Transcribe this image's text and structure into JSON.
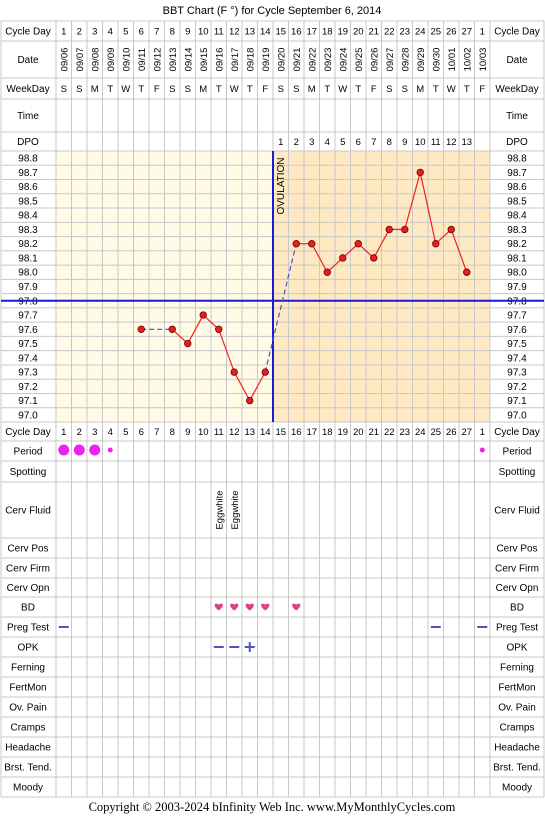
{
  "title": "BBT Chart (F °) for Cycle September 6, 2014",
  "footer": "Copyright © 2003-2024 bInfinity Web Inc.    www.MyMonthlyCycles.com",
  "colors": {
    "follicular_bg": "#fffbe6",
    "luteal_bg": "#fee9c3",
    "grid": "#c8c8c8",
    "temp_line": "#ee2222",
    "marker_fill": "#e02020",
    "coverline": "#1a1ad4",
    "ovulation_line": "#1a1ad4",
    "period_dot": "#ee22ee",
    "bd_heart": "#e0408a",
    "test_dash": "#5050c8"
  },
  "labels": {
    "cycle_day": "Cycle Day",
    "date": "Date",
    "weekday": "WeekDay",
    "time": "Time",
    "dpo": "DPO",
    "ovulation": "OVULATION",
    "rows": [
      "Period",
      "Spotting",
      "Cerv Fluid",
      "Cerv Pos",
      "Cerv Firm",
      "Cerv Opn",
      "BD",
      "Preg Test",
      "OPK",
      "Ferning",
      "FertMon",
      "Ov. Pain",
      "Cramps",
      "Headache",
      "Brst. Tend.",
      "Moody"
    ]
  },
  "cycle_days": [
    "1",
    "2",
    "3",
    "4",
    "5",
    "6",
    "7",
    "8",
    "9",
    "10",
    "11",
    "12",
    "13",
    "14",
    "15",
    "16",
    "17",
    "18",
    "19",
    "20",
    "21",
    "22",
    "23",
    "24",
    "25",
    "26",
    "27",
    "1"
  ],
  "dates": [
    "09/06",
    "09/07",
    "09/08",
    "09/09",
    "09/10",
    "09/11",
    "09/12",
    "09/13",
    "09/14",
    "09/15",
    "09/16",
    "09/17",
    "09/18",
    "09/19",
    "09/20",
    "09/21",
    "09/22",
    "09/23",
    "09/24",
    "09/25",
    "09/26",
    "09/27",
    "09/28",
    "09/29",
    "09/30",
    "10/01",
    "10/02",
    "10/03"
  ],
  "weekdays": [
    "S",
    "S",
    "M",
    "T",
    "W",
    "T",
    "F",
    "S",
    "S",
    "M",
    "T",
    "W",
    "T",
    "F",
    "S",
    "S",
    "M",
    "T",
    "W",
    "T",
    "F",
    "S",
    "S",
    "M",
    "T",
    "W",
    "T",
    "F"
  ],
  "dpo": [
    "",
    "",
    "",
    "",
    "",
    "",
    "",
    "",
    "",
    "",
    "",
    "",
    "",
    "",
    "1",
    "2",
    "3",
    "4",
    "5",
    "6",
    "7",
    "8",
    "9",
    "10",
    "11",
    "12",
    "13",
    ""
  ],
  "chart_data": {
    "type": "line",
    "title": "BBT Chart (F °) for Cycle September 6, 2014",
    "x": [
      1,
      2,
      3,
      4,
      5,
      6,
      7,
      8,
      9,
      10,
      11,
      12,
      13,
      14,
      15,
      16,
      17,
      18,
      19,
      20,
      21,
      22,
      23,
      24,
      25,
      26,
      27,
      28
    ],
    "series": [
      {
        "values": [
          null,
          null,
          null,
          null,
          null,
          97.6,
          null,
          97.6,
          97.5,
          97.7,
          97.6,
          97.3,
          97.1,
          97.3,
          null,
          98.2,
          98.2,
          98.0,
          98.1,
          98.2,
          98.1,
          98.3,
          98.3,
          98.7,
          98.2,
          98.3,
          98.0,
          null
        ]
      }
    ],
    "ylim": [
      97.0,
      98.8
    ],
    "yticks": [
      "98.8",
      "98.7",
      "98.6",
      "98.5",
      "98.4",
      "98.3",
      "98.2",
      "98.1",
      "98.0",
      "97.9",
      "97.8",
      "97.7",
      "97.6",
      "97.5",
      "97.4",
      "97.3",
      "97.2",
      "97.1",
      "97.0"
    ],
    "coverline": 97.8,
    "ovulation_after_day": 14,
    "grid": true
  },
  "period": [
    "large",
    "large",
    "large",
    "small",
    "",
    "",
    "",
    "",
    "",
    "",
    "",
    "",
    "",
    "",
    "",
    "",
    "",
    "",
    "",
    "",
    "",
    "",
    "",
    "",
    "",
    "",
    "",
    "small"
  ],
  "cerv_fluid": [
    "",
    "",
    "",
    "",
    "",
    "",
    "",
    "",
    "",
    "",
    "Eggwhite",
    "Eggwhite",
    "",
    "",
    "",
    "",
    "",
    "",
    "",
    "",
    "",
    "",
    "",
    "",
    "",
    "",
    "",
    ""
  ],
  "bd": [
    "",
    "",
    "",
    "",
    "",
    "",
    "",
    "",
    "",
    "",
    "heart",
    "heart",
    "heart",
    "heart",
    "",
    "heart",
    "",
    "",
    "",
    "",
    "",
    "",
    "",
    "",
    "",
    "",
    "",
    ""
  ],
  "preg_test": [
    "neg",
    "",
    "",
    "",
    "",
    "",
    "",
    "",
    "",
    "",
    "",
    "",
    "",
    "",
    "",
    "",
    "",
    "",
    "",
    "",
    "",
    "",
    "",
    "",
    "neg",
    "",
    "",
    "neg"
  ],
  "opk": [
    "",
    "",
    "",
    "",
    "",
    "",
    "",
    "",
    "",
    "",
    "neg",
    "neg",
    "pos",
    "",
    "",
    "",
    "",
    "",
    "",
    "",
    "",
    "",
    "",
    "",
    "",
    "",
    "",
    ""
  ]
}
